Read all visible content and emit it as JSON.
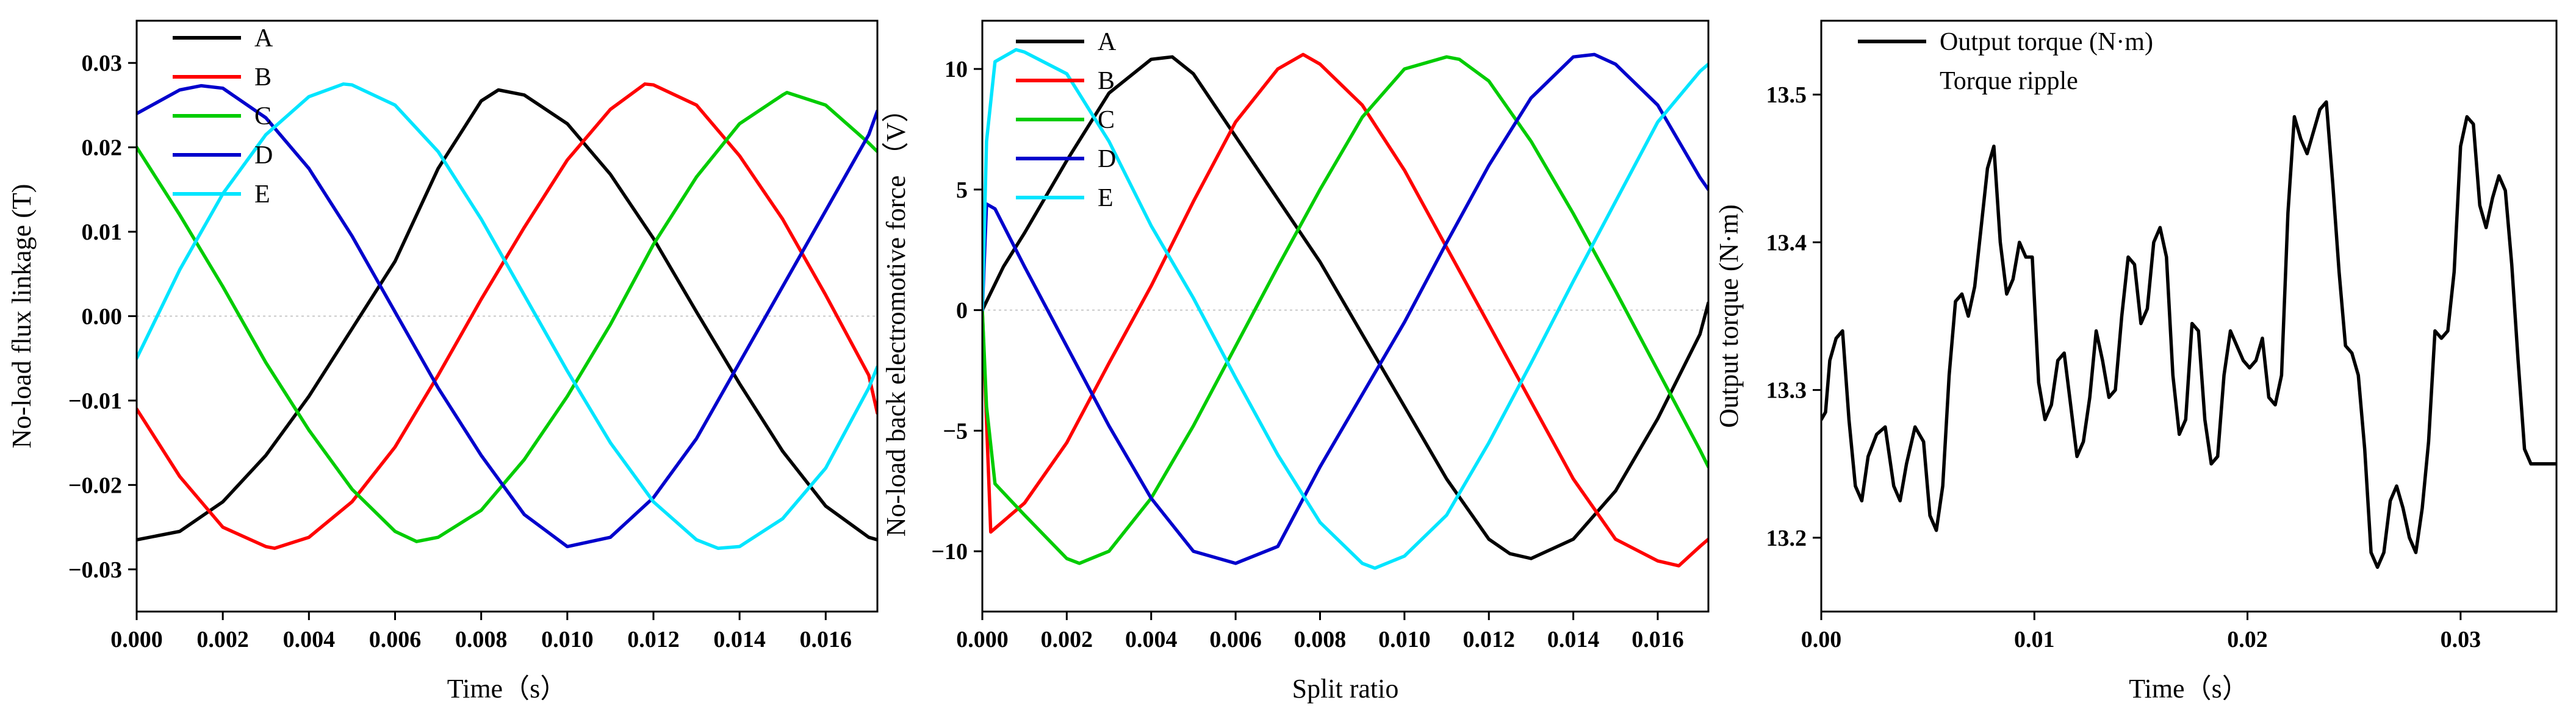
{
  "chart_data": [
    {
      "type": "line",
      "xlabel": "Time（s）",
      "ylabel": "No-load flux linkage (T)",
      "xlim": [
        0,
        0.0172
      ],
      "ylim": [
        -0.035,
        0.035
      ],
      "xticks": [
        0,
        0.002,
        0.004,
        0.006,
        0.008,
        0.01,
        0.012,
        0.014,
        0.016
      ],
      "xtick_labels": [
        "0.000",
        "0.002",
        "0.004",
        "0.006",
        "0.008",
        "0.010",
        "0.012",
        "0.014",
        "0.016"
      ],
      "yticks": [
        -0.03,
        -0.02,
        -0.01,
        0,
        0.01,
        0.02,
        0.03
      ],
      "ytick_labels": [
        "−0.03",
        "−0.02",
        "−0.01",
        "0.00",
        "0.01",
        "0.02",
        "0.03"
      ],
      "zero_line": true,
      "legend_position": "top-left",
      "series": [
        {
          "name": "A",
          "color": "#000000",
          "x": [
            0,
            0.001,
            0.002,
            0.003,
            0.004,
            0.005,
            0.006,
            0.007,
            0.008,
            0.0084,
            0.009,
            0.01,
            0.011,
            0.012,
            0.013,
            0.014,
            0.015,
            0.016,
            0.017,
            0.0172
          ],
          "y": [
            -0.0265,
            -0.0255,
            -0.022,
            -0.0165,
            -0.0095,
            -0.0015,
            0.0065,
            0.0175,
            0.0255,
            0.0268,
            0.0262,
            0.0228,
            0.0168,
            0.0092,
            0.0005,
            -0.008,
            -0.016,
            -0.0225,
            -0.0262,
            -0.0265
          ]
        },
        {
          "name": "B",
          "color": "#ff0000",
          "x": [
            0,
            0.001,
            0.002,
            0.003,
            0.0032,
            0.004,
            0.005,
            0.006,
            0.007,
            0.008,
            0.009,
            0.01,
            0.011,
            0.0118,
            0.012,
            0.013,
            0.014,
            0.015,
            0.016,
            0.017,
            0.0172
          ],
          "y": [
            -0.011,
            -0.019,
            -0.025,
            -0.0273,
            -0.0275,
            -0.0262,
            -0.022,
            -0.0155,
            -0.007,
            0.002,
            0.0105,
            0.0185,
            0.0245,
            0.0275,
            0.0274,
            0.025,
            0.019,
            0.0115,
            0.0025,
            -0.007,
            -0.0115
          ]
        },
        {
          "name": "C",
          "color": "#00cc00",
          "x": [
            0,
            0.001,
            0.002,
            0.003,
            0.004,
            0.005,
            0.006,
            0.0065,
            0.007,
            0.008,
            0.009,
            0.01,
            0.011,
            0.012,
            0.013,
            0.014,
            0.015,
            0.0151,
            0.016,
            0.017,
            0.0172
          ],
          "y": [
            0.02,
            0.012,
            0.0035,
            -0.0055,
            -0.0135,
            -0.0205,
            -0.0255,
            -0.0267,
            -0.0262,
            -0.023,
            -0.017,
            -0.0095,
            -0.001,
            0.0085,
            0.0165,
            0.0228,
            0.0262,
            0.0265,
            0.025,
            0.0205,
            0.0195
          ]
        },
        {
          "name": "D",
          "color": "#0000cc",
          "x": [
            0,
            0.001,
            0.0015,
            0.002,
            0.003,
            0.004,
            0.005,
            0.006,
            0.007,
            0.008,
            0.009,
            0.01,
            0.011,
            0.012,
            0.013,
            0.014,
            0.015,
            0.016,
            0.017,
            0.0172
          ],
          "y": [
            0.024,
            0.0268,
            0.0273,
            0.027,
            0.0235,
            0.0175,
            0.0095,
            0.0005,
            -0.0085,
            -0.0165,
            -0.0235,
            -0.0273,
            -0.0262,
            -0.0215,
            -0.0145,
            -0.0055,
            0.0035,
            0.0125,
            0.0215,
            0.0243
          ]
        },
        {
          "name": "E",
          "color": "#00e5ff",
          "x": [
            0,
            0.001,
            0.002,
            0.003,
            0.004,
            0.0048,
            0.005,
            0.006,
            0.007,
            0.008,
            0.009,
            0.01,
            0.011,
            0.012,
            0.013,
            0.0135,
            0.014,
            0.015,
            0.016,
            0.017,
            0.0172
          ],
          "y": [
            -0.005,
            0.0055,
            0.0145,
            0.0215,
            0.026,
            0.0275,
            0.0274,
            0.025,
            0.0195,
            0.0115,
            0.0025,
            -0.0065,
            -0.015,
            -0.022,
            -0.0265,
            -0.0275,
            -0.0273,
            -0.024,
            -0.018,
            -0.0085,
            -0.006
          ]
        }
      ]
    },
    {
      "type": "line",
      "xlabel": "Split ratio",
      "ylabel": "No-load back electromotive force （V）",
      "xlim": [
        0,
        0.0172
      ],
      "ylim": [
        -12.5,
        12
      ],
      "xticks": [
        0,
        0.002,
        0.004,
        0.006,
        0.008,
        0.01,
        0.012,
        0.014,
        0.016
      ],
      "xtick_labels": [
        "0.000",
        "0.002",
        "0.004",
        "0.006",
        "0.008",
        "0.010",
        "0.012",
        "0.014",
        "0.016"
      ],
      "yticks": [
        -10,
        -5,
        0,
        5,
        10
      ],
      "ytick_labels": [
        "−10",
        "−5",
        "0",
        "5",
        "10"
      ],
      "zero_line": true,
      "legend_position": "top-left",
      "series": [
        {
          "name": "A",
          "color": "#000000",
          "x": [
            0,
            0.0005,
            0.001,
            0.002,
            0.003,
            0.004,
            0.0045,
            0.005,
            0.006,
            0.007,
            0.008,
            0.009,
            0.01,
            0.011,
            0.012,
            0.0125,
            0.013,
            0.014,
            0.015,
            0.016,
            0.017,
            0.0172
          ],
          "y": [
            0,
            1.8,
            3.2,
            6.2,
            9.0,
            10.4,
            10.5,
            9.8,
            7.2,
            4.6,
            2.0,
            -1.0,
            -4.0,
            -7.0,
            -9.5,
            -10.1,
            -10.3,
            -9.5,
            -7.5,
            -4.5,
            -1.0,
            0.3
          ]
        },
        {
          "name": "B",
          "color": "#ff0000",
          "x": [
            0,
            0.0002,
            0.001,
            0.002,
            0.003,
            0.004,
            0.005,
            0.006,
            0.007,
            0.0076,
            0.008,
            0.009,
            0.01,
            0.011,
            0.012,
            0.013,
            0.014,
            0.015,
            0.016,
            0.0165,
            0.017,
            0.0172
          ],
          "y": [
            0,
            -9.2,
            -8.0,
            -5.5,
            -2.2,
            1.0,
            4.5,
            7.8,
            10.0,
            10.6,
            10.2,
            8.5,
            5.8,
            2.6,
            -0.6,
            -3.8,
            -7.0,
            -9.5,
            -10.4,
            -10.6,
            -9.8,
            -9.5
          ]
        },
        {
          "name": "C",
          "color": "#00cc00",
          "x": [
            0,
            0.0001,
            0.0003,
            0.001,
            0.002,
            0.0023,
            0.003,
            0.004,
            0.005,
            0.006,
            0.007,
            0.008,
            0.009,
            0.01,
            0.011,
            0.0113,
            0.012,
            0.013,
            0.014,
            0.015,
            0.016,
            0.017,
            0.0172
          ],
          "y": [
            0,
            -4.0,
            -7.2,
            -8.5,
            -10.3,
            -10.5,
            -10.0,
            -7.8,
            -4.8,
            -1.5,
            1.8,
            5.0,
            8.0,
            10.0,
            10.5,
            10.4,
            9.5,
            7.0,
            4.0,
            0.8,
            -2.5,
            -5.8,
            -6.5
          ]
        },
        {
          "name": "D",
          "color": "#0000cc",
          "x": [
            0,
            0.0001,
            0.0003,
            0.001,
            0.002,
            0.003,
            0.004,
            0.005,
            0.006,
            0.007,
            0.008,
            0.009,
            0.01,
            0.011,
            0.012,
            0.013,
            0.014,
            0.0145,
            0.015,
            0.016,
            0.017,
            0.0172
          ],
          "y": [
            0,
            4.4,
            4.2,
            1.8,
            -1.5,
            -4.8,
            -7.8,
            -10.0,
            -10.5,
            -9.8,
            -6.5,
            -3.5,
            -0.5,
            2.8,
            6.0,
            8.8,
            10.5,
            10.6,
            10.2,
            8.5,
            5.5,
            5.0
          ]
        },
        {
          "name": "E",
          "color": "#00e5ff",
          "x": [
            0,
            0.0001,
            0.0003,
            0.0008,
            0.001,
            0.002,
            0.003,
            0.004,
            0.005,
            0.006,
            0.007,
            0.008,
            0.009,
            0.0093,
            0.01,
            0.011,
            0.012,
            0.013,
            0.014,
            0.015,
            0.016,
            0.017,
            0.0172
          ],
          "y": [
            0,
            7.0,
            10.3,
            10.8,
            10.7,
            9.8,
            7.0,
            3.5,
            0.5,
            -2.8,
            -6.0,
            -8.8,
            -10.5,
            -10.7,
            -10.2,
            -8.5,
            -5.5,
            -2.2,
            1.2,
            4.5,
            7.8,
            9.9,
            10.2
          ]
        }
      ]
    },
    {
      "type": "line",
      "xlabel": "Time（s）",
      "ylabel": "Output torque (N·m)",
      "xlim": [
        0,
        0.0345
      ],
      "ylim": [
        13.15,
        13.55
      ],
      "xticks": [
        0,
        0.01,
        0.02,
        0.03
      ],
      "xtick_labels": [
        "0.00",
        "0.01",
        "0.02",
        "0.03"
      ],
      "yticks": [
        13.2,
        13.3,
        13.4,
        13.5
      ],
      "ytick_labels": [
        "13.2",
        "13.3",
        "13.4",
        "13.5"
      ],
      "zero_line": false,
      "legend_position": "top-left",
      "legend_entries": [
        "Output torque (N·m)",
        "Torque ripple"
      ],
      "series": [
        {
          "name": "Output torque (N·m)",
          "color": "#000000",
          "x": [
            0,
            0.0002,
            0.0004,
            0.0007,
            0.001,
            0.0013,
            0.0016,
            0.0019,
            0.0022,
            0.0026,
            0.003,
            0.0034,
            0.0037,
            0.004,
            0.0044,
            0.0048,
            0.0051,
            0.0054,
            0.0057,
            0.006,
            0.0063,
            0.0066,
            0.0069,
            0.0072,
            0.0075,
            0.0078,
            0.0081,
            0.0084,
            0.0087,
            0.009,
            0.0093,
            0.0096,
            0.0099,
            0.0102,
            0.0105,
            0.0108,
            0.0111,
            0.0114,
            0.0117,
            0.012,
            0.0123,
            0.0126,
            0.0129,
            0.0132,
            0.0135,
            0.0138,
            0.0141,
            0.0144,
            0.0147,
            0.015,
            0.0153,
            0.0156,
            0.0159,
            0.0162,
            0.0165,
            0.0168,
            0.0171,
            0.0174,
            0.0177,
            0.018,
            0.0183,
            0.0186,
            0.0189,
            0.0192,
            0.0195,
            0.0198,
            0.0201,
            0.0204,
            0.0207,
            0.021,
            0.0213,
            0.0216,
            0.0219,
            0.0222,
            0.0225,
            0.0228,
            0.0231,
            0.0234,
            0.0237,
            0.024,
            0.0243,
            0.0246,
            0.0249,
            0.0252,
            0.0255,
            0.0258,
            0.0261,
            0.0264,
            0.0267,
            0.027,
            0.0273,
            0.0276,
            0.0279,
            0.0282,
            0.0285,
            0.0288,
            0.0291,
            0.0294,
            0.0297,
            0.03,
            0.0303,
            0.0306,
            0.0309,
            0.0312,
            0.0315,
            0.0318,
            0.0321,
            0.0324,
            0.0327,
            0.033,
            0.0333,
            0.0336,
            0.0339,
            0.0342,
            0.0345
          ],
          "y": [
            13.28,
            13.285,
            13.32,
            13.335,
            13.34,
            13.28,
            13.235,
            13.225,
            13.255,
            13.27,
            13.275,
            13.235,
            13.225,
            13.25,
            13.275,
            13.265,
            13.215,
            13.205,
            13.235,
            13.31,
            13.36,
            13.365,
            13.35,
            13.37,
            13.41,
            13.45,
            13.465,
            13.4,
            13.365,
            13.375,
            13.4,
            13.39,
            13.39,
            13.305,
            13.28,
            13.29,
            13.32,
            13.325,
            13.29,
            13.255,
            13.265,
            13.295,
            13.34,
            13.32,
            13.295,
            13.3,
            13.35,
            13.39,
            13.385,
            13.345,
            13.355,
            13.4,
            13.41,
            13.39,
            13.31,
            13.27,
            13.28,
            13.345,
            13.34,
            13.28,
            13.25,
            13.255,
            13.31,
            13.34,
            13.33,
            13.32,
            13.315,
            13.32,
            13.335,
            13.295,
            13.29,
            13.31,
            13.42,
            13.485,
            13.47,
            13.46,
            13.475,
            13.49,
            13.495,
            13.44,
            13.38,
            13.33,
            13.325,
            13.31,
            13.26,
            13.19,
            13.18,
            13.19,
            13.225,
            13.235,
            13.22,
            13.2,
            13.19,
            13.22,
            13.265,
            13.34,
            13.335,
            13.34,
            13.38,
            13.465,
            13.485,
            13.48,
            13.425,
            13.41,
            13.43,
            13.445,
            13.435,
            13.385,
            13.32,
            13.26,
            13.25,
            13.25,
            13.25,
            13.25,
            13.25
          ]
        }
      ]
    }
  ]
}
